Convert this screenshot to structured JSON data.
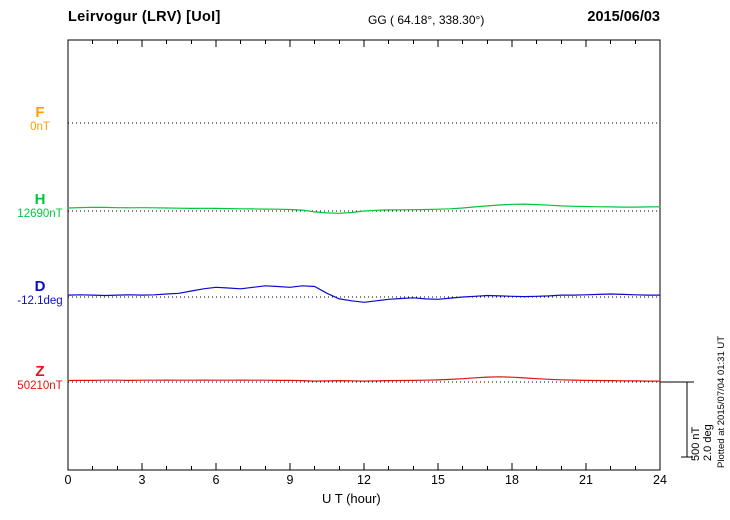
{
  "header": {
    "title": "Leirvogur (LRV)  [UoI]",
    "coordinates": "GG ( 64.18°, 338.30°)",
    "date": "2015/06/03"
  },
  "scale_bar_labels": {
    "nT": "500 nT",
    "deg": "2.0 deg"
  },
  "footer_note": "Plotted at 2015/07/04 01:31 UT",
  "chart_data": {
    "type": "line",
    "title": "Leirvogur (LRV) [UoI] magnetogram 2015/06/03",
    "xlabel": "U T (hour)",
    "xlim": [
      0,
      24
    ],
    "x_ticks": [
      0,
      3,
      6,
      9,
      12,
      15,
      18,
      21,
      24
    ],
    "x_step": 0.5,
    "grid": "dotted-baselines",
    "legend_position": "left",
    "scale_bar": {
      "nT_per_div": 500,
      "deg_per_div": 2.0
    },
    "series": [
      {
        "name": "F",
        "unit": "nT",
        "color": "#FFA000",
        "baseline_label": "0nT",
        "baseline_value": 0,
        "values": []
      },
      {
        "name": "H",
        "unit": "nT",
        "color": "#00C83C",
        "baseline_label": "12690nT",
        "baseline_value": 12690,
        "values": [
          20,
          23,
          25,
          24,
          22,
          21,
          22,
          21,
          20,
          19,
          17,
          18,
          17,
          16,
          15,
          14,
          13,
          12,
          10,
          6,
          -6,
          -13,
          -15,
          -10,
          0,
          5,
          7,
          8,
          9,
          10,
          12,
          15,
          20,
          27,
          34,
          40,
          45,
          46,
          43,
          39,
          34,
          31,
          30,
          28,
          27,
          26,
          26,
          27,
          28
        ]
      },
      {
        "name": "D",
        "unit": "deg",
        "color": "#0A0AD2",
        "baseline_label": "-12.1deg",
        "baseline_value": -12.1,
        "values": [
          0.05,
          0.06,
          0.05,
          0.04,
          0.05,
          0.06,
          0.05,
          0.06,
          0.08,
          0.1,
          0.16,
          0.22,
          0.26,
          0.24,
          0.22,
          0.26,
          0.3,
          0.28,
          0.26,
          0.3,
          0.28,
          0.1,
          -0.05,
          -0.1,
          -0.14,
          -0.1,
          -0.06,
          -0.04,
          -0.02,
          -0.05,
          -0.06,
          -0.03,
          0.0,
          0.02,
          0.04,
          0.03,
          0.02,
          0.01,
          0.02,
          0.03,
          0.05,
          0.05,
          0.06,
          0.07,
          0.08,
          0.07,
          0.06,
          0.05,
          0.05
        ]
      },
      {
        "name": "Z",
        "unit": "nT",
        "color": "#E01414",
        "baseline_label": "50210nT",
        "baseline_value": 50210,
        "values": [
          10,
          11,
          11,
          12,
          12,
          11,
          12,
          12,
          13,
          12,
          12,
          13,
          12,
          12,
          13,
          12,
          12,
          11,
          11,
          9,
          6,
          7,
          9,
          8,
          6,
          7,
          9,
          10,
          11,
          12,
          14,
          17,
          22,
          28,
          33,
          35,
          32,
          27,
          22,
          18,
          15,
          13,
          11,
          10,
          9,
          8,
          7,
          6,
          6
        ]
      }
    ]
  }
}
